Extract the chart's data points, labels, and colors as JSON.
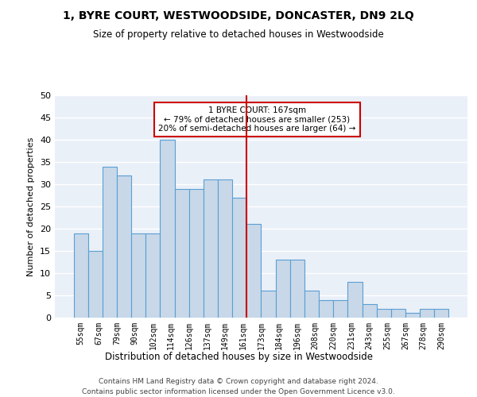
{
  "title": "1, BYRE COURT, WESTWOODSIDE, DONCASTER, DN9 2LQ",
  "subtitle": "Size of property relative to detached houses in Westwoodside",
  "xlabel": "Distribution of detached houses by size in Westwoodside",
  "ylabel": "Number of detached properties",
  "bar_values": [
    19,
    15,
    34,
    32,
    19,
    19,
    40,
    29,
    29,
    31,
    31,
    27,
    21,
    6,
    13,
    13,
    6,
    4,
    4,
    8,
    3,
    2,
    2,
    1,
    2,
    2
  ],
  "x_labels": [
    "55sqm",
    "67sqm",
    "79sqm",
    "90sqm",
    "102sqm",
    "114sqm",
    "126sqm",
    "137sqm",
    "149sqm",
    "161sqm",
    "173sqm",
    "184sqm",
    "196sqm",
    "208sqm",
    "220sqm",
    "231sqm",
    "243sqm",
    "255sqm",
    "267sqm",
    "278sqm",
    "290sqm",
    "",
    "",
    "",
    "",
    ""
  ],
  "bar_color": "#c8d8e8",
  "bar_edge_color": "#5a9fd4",
  "background_color": "#eaf0f8",
  "vline_color": "#cc0000",
  "annotation_text": "1 BYRE COURT: 167sqm\n← 79% of detached houses are smaller (253)\n20% of semi-detached houses are larger (64) →",
  "annotation_box_color": "#cc0000",
  "ylim": [
    0,
    50
  ],
  "yticks": [
    0,
    5,
    10,
    15,
    20,
    25,
    30,
    35,
    40,
    45,
    50
  ],
  "footer_line1": "Contains HM Land Registry data © Crown copyright and database right 2024.",
  "footer_line2": "Contains public sector information licensed under the Open Government Licence v3.0."
}
